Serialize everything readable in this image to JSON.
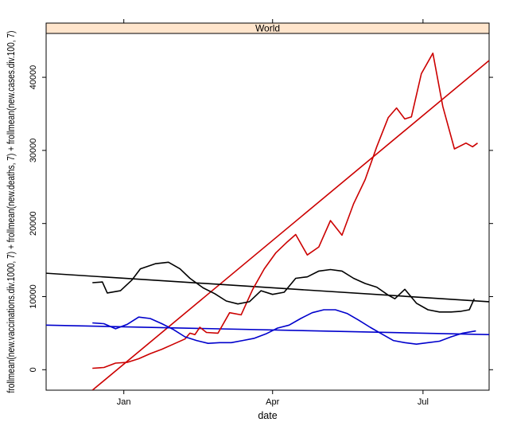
{
  "chart_data": {
    "type": "line",
    "panel_title": "World",
    "xlabel": "date",
    "ylabel": "frollmean(new.vaccinations.div.1000, 7) + frollmean(new.deaths, 7) + frollmean(new.cases.div.100, 7)",
    "x_ticks": [
      "Jan",
      "Apr",
      "Jul"
    ],
    "y_ticks": [
      0,
      10000,
      20000,
      30000,
      40000
    ],
    "xlim": [
      "2020-11-15",
      "2021-08-10"
    ],
    "ylim": [
      -2800,
      46000
    ],
    "grid": false,
    "legend": "none",
    "colors": {
      "vaccinations": "#cc0000",
      "cases": "#000000",
      "deaths": "#0000cc",
      "strip": "#ffe5cc"
    },
    "series": [
      {
        "key": "vaccinations",
        "color": "#cc0000",
        "points": [
          [
            "2020-12-13",
            200
          ],
          [
            "2020-12-20",
            300
          ],
          [
            "2020-12-27",
            900
          ],
          [
            "2021-01-03",
            1000
          ],
          [
            "2021-01-10",
            1500
          ],
          [
            "2021-01-17",
            2200
          ],
          [
            "2021-01-24",
            2800
          ],
          [
            "2021-01-31",
            3500
          ],
          [
            "2021-02-07",
            4200
          ],
          [
            "2021-02-10",
            5000
          ],
          [
            "2021-02-13",
            4800
          ],
          [
            "2021-02-16",
            5800
          ],
          [
            "2021-02-20",
            5100
          ],
          [
            "2021-02-27",
            5000
          ],
          [
            "2021-03-06",
            7800
          ],
          [
            "2021-03-13",
            7500
          ],
          [
            "2021-03-20",
            11000
          ],
          [
            "2021-03-27",
            13800
          ],
          [
            "2021-04-03",
            16000
          ],
          [
            "2021-04-10",
            17500
          ],
          [
            "2021-04-15",
            18500
          ],
          [
            "2021-04-22",
            15700
          ],
          [
            "2021-04-29",
            16800
          ],
          [
            "2021-05-06",
            20400
          ],
          [
            "2021-05-13",
            18400
          ],
          [
            "2021-05-20",
            22700
          ],
          [
            "2021-05-27",
            26000
          ],
          [
            "2021-06-03",
            30500
          ],
          [
            "2021-06-10",
            34500
          ],
          [
            "2021-06-15",
            35800
          ],
          [
            "2021-06-20",
            34300
          ],
          [
            "2021-06-24",
            34600
          ],
          [
            "2021-06-30",
            40500
          ],
          [
            "2021-07-07",
            43300
          ],
          [
            "2021-07-13",
            36000
          ],
          [
            "2021-07-20",
            30200
          ],
          [
            "2021-07-27",
            31000
          ],
          [
            "2021-07-31",
            30500
          ],
          [
            "2021-08-03",
            31000
          ]
        ]
      },
      {
        "key": "cases",
        "color": "#000000",
        "points": [
          [
            "2020-12-13",
            11900
          ],
          [
            "2020-12-19",
            12000
          ],
          [
            "2020-12-22",
            10500
          ],
          [
            "2020-12-30",
            10800
          ],
          [
            "2021-01-06",
            12300
          ],
          [
            "2021-01-11",
            13800
          ],
          [
            "2021-01-20",
            14500
          ],
          [
            "2021-01-28",
            14700
          ],
          [
            "2021-02-04",
            13800
          ],
          [
            "2021-02-10",
            12500
          ],
          [
            "2021-02-18",
            11200
          ],
          [
            "2021-02-25",
            10400
          ],
          [
            "2021-03-04",
            9400
          ],
          [
            "2021-03-11",
            9000
          ],
          [
            "2021-03-18",
            9300
          ],
          [
            "2021-03-25",
            10800
          ],
          [
            "2021-04-01",
            10300
          ],
          [
            "2021-04-08",
            10600
          ],
          [
            "2021-04-15",
            12500
          ],
          [
            "2021-04-22",
            12700
          ],
          [
            "2021-04-29",
            13500
          ],
          [
            "2021-05-06",
            13700
          ],
          [
            "2021-05-13",
            13500
          ],
          [
            "2021-05-20",
            12500
          ],
          [
            "2021-05-27",
            11800
          ],
          [
            "2021-06-03",
            11300
          ],
          [
            "2021-06-10",
            10200
          ],
          [
            "2021-06-14",
            9700
          ],
          [
            "2021-06-20",
            11000
          ],
          [
            "2021-06-27",
            9100
          ],
          [
            "2021-07-04",
            8200
          ],
          [
            "2021-07-11",
            7900
          ],
          [
            "2021-07-18",
            7900
          ],
          [
            "2021-07-24",
            8000
          ],
          [
            "2021-07-29",
            8200
          ],
          [
            "2021-08-01",
            9700
          ]
        ]
      },
      {
        "key": "deaths",
        "color": "#0000cc",
        "points": [
          [
            "2020-12-13",
            6400
          ],
          [
            "2020-12-20",
            6300
          ],
          [
            "2020-12-27",
            5600
          ],
          [
            "2021-01-03",
            6200
          ],
          [
            "2021-01-10",
            7200
          ],
          [
            "2021-01-17",
            7000
          ],
          [
            "2021-01-24",
            6300
          ],
          [
            "2021-01-31",
            5500
          ],
          [
            "2021-02-07",
            4500
          ],
          [
            "2021-02-14",
            4000
          ],
          [
            "2021-02-21",
            3600
          ],
          [
            "2021-02-28",
            3700
          ],
          [
            "2021-03-07",
            3700
          ],
          [
            "2021-03-14",
            4000
          ],
          [
            "2021-03-21",
            4300
          ],
          [
            "2021-03-28",
            4900
          ],
          [
            "2021-04-04",
            5700
          ],
          [
            "2021-04-11",
            6100
          ],
          [
            "2021-04-18",
            7000
          ],
          [
            "2021-04-25",
            7800
          ],
          [
            "2021-05-02",
            8200
          ],
          [
            "2021-05-09",
            8200
          ],
          [
            "2021-05-16",
            7700
          ],
          [
            "2021-05-23",
            6800
          ],
          [
            "2021-05-30",
            5800
          ],
          [
            "2021-06-06",
            4900
          ],
          [
            "2021-06-13",
            4000
          ],
          [
            "2021-06-20",
            3700
          ],
          [
            "2021-06-27",
            3500
          ],
          [
            "2021-07-04",
            3700
          ],
          [
            "2021-07-11",
            3900
          ],
          [
            "2021-07-18",
            4500
          ],
          [
            "2021-07-25",
            5000
          ],
          [
            "2021-08-02",
            5300
          ]
        ]
      }
    ],
    "regression_lines": [
      {
        "series": "vaccinations",
        "color": "#cc0000",
        "from": [
          "2020-12-13",
          -2800
        ],
        "to": [
          "2021-08-10",
          42300
        ]
      },
      {
        "series": "cases",
        "color": "#000000",
        "from": [
          "2020-11-15",
          13200
        ],
        "to": [
          "2021-08-10",
          9300
        ]
      },
      {
        "series": "deaths",
        "color": "#0000cc",
        "from": [
          "2020-11-15",
          6100
        ],
        "to": [
          "2021-08-10",
          4800
        ]
      }
    ]
  }
}
